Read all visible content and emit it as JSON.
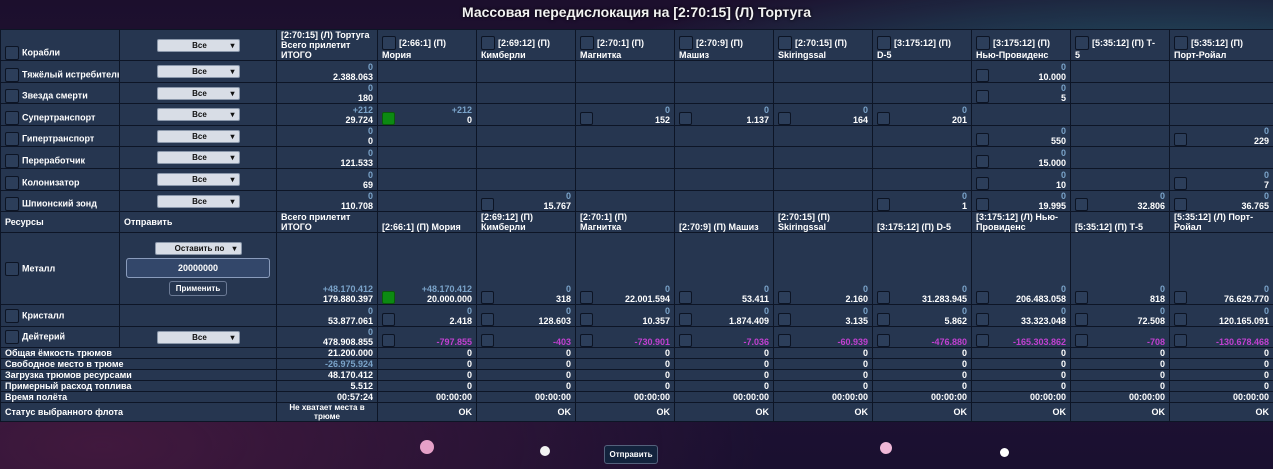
{
  "title": "Массовая передислокация на [2:70:15] (Л) Тортуга",
  "colors": {
    "accent_blue": "#7aa3c9",
    "negative": "#c040d0",
    "selected_green": "#0c8a12"
  },
  "ships_section": {
    "header_label": "Корабли",
    "header_select": "Все",
    "total_header_line1": "[2:70:15] (Л) Тортуга",
    "total_header_line2": "Всего прилетит",
    "total_header_line3": "ИТОГО",
    "planets": [
      {
        "coord": "[2:66:1] (П)",
        "name": "Мория"
      },
      {
        "coord": "[2:69:12] (П)",
        "name": "Кимберли"
      },
      {
        "coord": "[2:70:1] (П)",
        "name": "Магнитка"
      },
      {
        "coord": "[2:70:9] (П)",
        "name": "Машиз"
      },
      {
        "coord": "[2:70:15] (П)",
        "name": "Skiringssal"
      },
      {
        "coord": "[3:175:12] (П)",
        "name": "D-5"
      },
      {
        "coord": "[3:175:12] (П)",
        "name": "Нью-Провиденс"
      },
      {
        "coord": "[5:35:12] (П) Т-",
        "name": "5"
      },
      {
        "coord": "[5:35:12] (П)",
        "name": "Порт-Ройал"
      }
    ],
    "rows": [
      {
        "name": "Тяжёлый истребитель",
        "select": "Все",
        "total_sub": "0",
        "total": "2.388.063",
        "cells": [
          null,
          null,
          null,
          null,
          null,
          null,
          {
            "sub": "0",
            "val": "10.000"
          },
          null,
          null
        ]
      },
      {
        "name": "Звезда смерти",
        "select": "Все",
        "total_sub": "0",
        "total": "180",
        "cells": [
          null,
          null,
          null,
          null,
          null,
          null,
          {
            "sub": "0",
            "val": "5"
          },
          null,
          null
        ]
      },
      {
        "name": "Супертранспорт",
        "select": "Все",
        "total_sub": "+212",
        "total": "29.724",
        "cells": [
          {
            "sub": "+212",
            "val": "0",
            "on": true
          },
          null,
          {
            "sub": "0",
            "val": "152"
          },
          {
            "sub": "0",
            "val": "1.137"
          },
          {
            "sub": "0",
            "val": "164"
          },
          {
            "sub": "0",
            "val": "201"
          },
          null,
          null,
          null
        ]
      },
      {
        "name": "Гипертранспорт",
        "select": "Все",
        "total_sub": "0",
        "total": "0",
        "cells": [
          null,
          null,
          null,
          null,
          null,
          null,
          {
            "sub": "0",
            "val": "550"
          },
          null,
          {
            "sub": "0",
            "val": "229"
          }
        ]
      },
      {
        "name": "Переработчик",
        "select": "Все",
        "total_sub": "0",
        "total": "121.533",
        "cells": [
          null,
          null,
          null,
          null,
          null,
          null,
          {
            "sub": "0",
            "val": "15.000"
          },
          null,
          null
        ]
      },
      {
        "name": "Колонизатор",
        "select": "Все",
        "total_sub": "0",
        "total": "69",
        "cells": [
          null,
          null,
          null,
          null,
          null,
          null,
          {
            "sub": "0",
            "val": "10"
          },
          null,
          {
            "sub": "0",
            "val": "7"
          }
        ]
      },
      {
        "name": "Шпионский зонд",
        "select": "Все",
        "total_sub": "0",
        "total": "110.708",
        "cells": [
          null,
          {
            "sub": "0",
            "val": "15.767"
          },
          null,
          null,
          null,
          {
            "sub": "0",
            "val": "1"
          },
          {
            "sub": "0",
            "val": "19.995"
          },
          {
            "sub": "0",
            "val": "32.806"
          },
          {
            "sub": "0",
            "val": "36.765"
          }
        ]
      }
    ]
  },
  "resources_section": {
    "header_label": "Ресурсы",
    "send_label": "Отправить",
    "total_header_line1": "Всего прилетит",
    "total_header_line2": "ИТОГО",
    "planet_headers": [
      "[2:66:1] (П) Мория",
      "[2:69:12] (П) Кимберли",
      "[2:70:1] (П) Магнитка",
      "[2:70:9] (П) Машиз",
      "[2:70:15] (П) Skiringssal",
      "[3:175:12] (П) D-5",
      "[3:175:12] (Л) Нью-Провиденс",
      "[5:35:12] (П) Т-5",
      "[5:35:12] (Л) Порт-Ройал"
    ],
    "leave_select": "Оставить по",
    "amount_value": "20000000",
    "apply_label": "Применить",
    "rows": [
      {
        "name": "Металл",
        "total_sub": "+48.170.412",
        "total": "179.880.397",
        "cells": [
          {
            "sub": "+48.170.412",
            "val": "20.000.000",
            "on": true
          },
          {
            "sub": "0",
            "val": "318"
          },
          {
            "sub": "0",
            "val": "22.001.594"
          },
          {
            "sub": "0",
            "val": "53.411"
          },
          {
            "sub": "0",
            "val": "2.160"
          },
          {
            "sub": "0",
            "val": "31.283.945"
          },
          {
            "sub": "0",
            "val": "206.483.058"
          },
          {
            "sub": "0",
            "val": "818"
          },
          {
            "sub": "0",
            "val": "76.629.770"
          }
        ]
      },
      {
        "name": "Кристалл",
        "total_sub": "0",
        "total": "53.877.061",
        "cells": [
          {
            "sub": "0",
            "val": "2.418"
          },
          {
            "sub": "0",
            "val": "128.603"
          },
          {
            "sub": "0",
            "val": "10.357"
          },
          {
            "sub": "0",
            "val": "1.874.409"
          },
          {
            "sub": "0",
            "val": "3.135"
          },
          {
            "sub": "0",
            "val": "5.862"
          },
          {
            "sub": "0",
            "val": "33.323.048"
          },
          {
            "sub": "0",
            "val": "72.508"
          },
          {
            "sub": "0",
            "val": "120.165.091"
          }
        ]
      },
      {
        "name": "Дейтерий",
        "select": "Все",
        "total_sub": "0",
        "total": "478.908.855",
        "cells": [
          {
            "sub": "-797.855",
            "purple": true
          },
          {
            "sub": "-403",
            "purple": true
          },
          {
            "sub": "-730.901",
            "purple": true
          },
          {
            "sub": "-7.036",
            "purple": true
          },
          {
            "sub": "-60.939",
            "purple": true
          },
          {
            "sub": "-476.880",
            "purple": true
          },
          {
            "sub": "-165.303.862",
            "purple": true
          },
          {
            "sub": "-708",
            "purple": true
          },
          {
            "sub": "-130.678.468",
            "purple": true
          }
        ]
      }
    ]
  },
  "summary": [
    {
      "label": "Общая ёмкость трюмов",
      "total": "21.200.000",
      "vals": [
        "0",
        "0",
        "0",
        "0",
        "0",
        "0",
        "0",
        "0",
        "0"
      ]
    },
    {
      "label": "Свободное место в трюме",
      "total": "-26.975.924",
      "purple": true,
      "vals": [
        "0",
        "0",
        "0",
        "0",
        "0",
        "0",
        "0",
        "0",
        "0"
      ]
    },
    {
      "label": "Загрузка трюмов ресурсами",
      "total": "48.170.412",
      "vals": [
        "0",
        "0",
        "0",
        "0",
        "0",
        "0",
        "0",
        "0",
        "0"
      ]
    },
    {
      "label": "Примерный расход топлива",
      "total": "5.512",
      "vals": [
        "0",
        "0",
        "0",
        "0",
        "0",
        "0",
        "0",
        "0",
        "0"
      ]
    },
    {
      "label": "Время полёта",
      "total": "00:57:24",
      "vals": [
        "00:00:00",
        "00:00:00",
        "00:00:00",
        "00:00:00",
        "00:00:00",
        "00:00:00",
        "00:00:00",
        "00:00:00",
        "00:00:00"
      ]
    },
    {
      "label": "Статус выбранного флота",
      "total": "Не хватает места в трюме",
      "vals": [
        "OK",
        "OK",
        "OK",
        "OK",
        "OK",
        "OK",
        "OK",
        "OK",
        "OK"
      ]
    }
  ],
  "bottom_send_label": "Отправить"
}
